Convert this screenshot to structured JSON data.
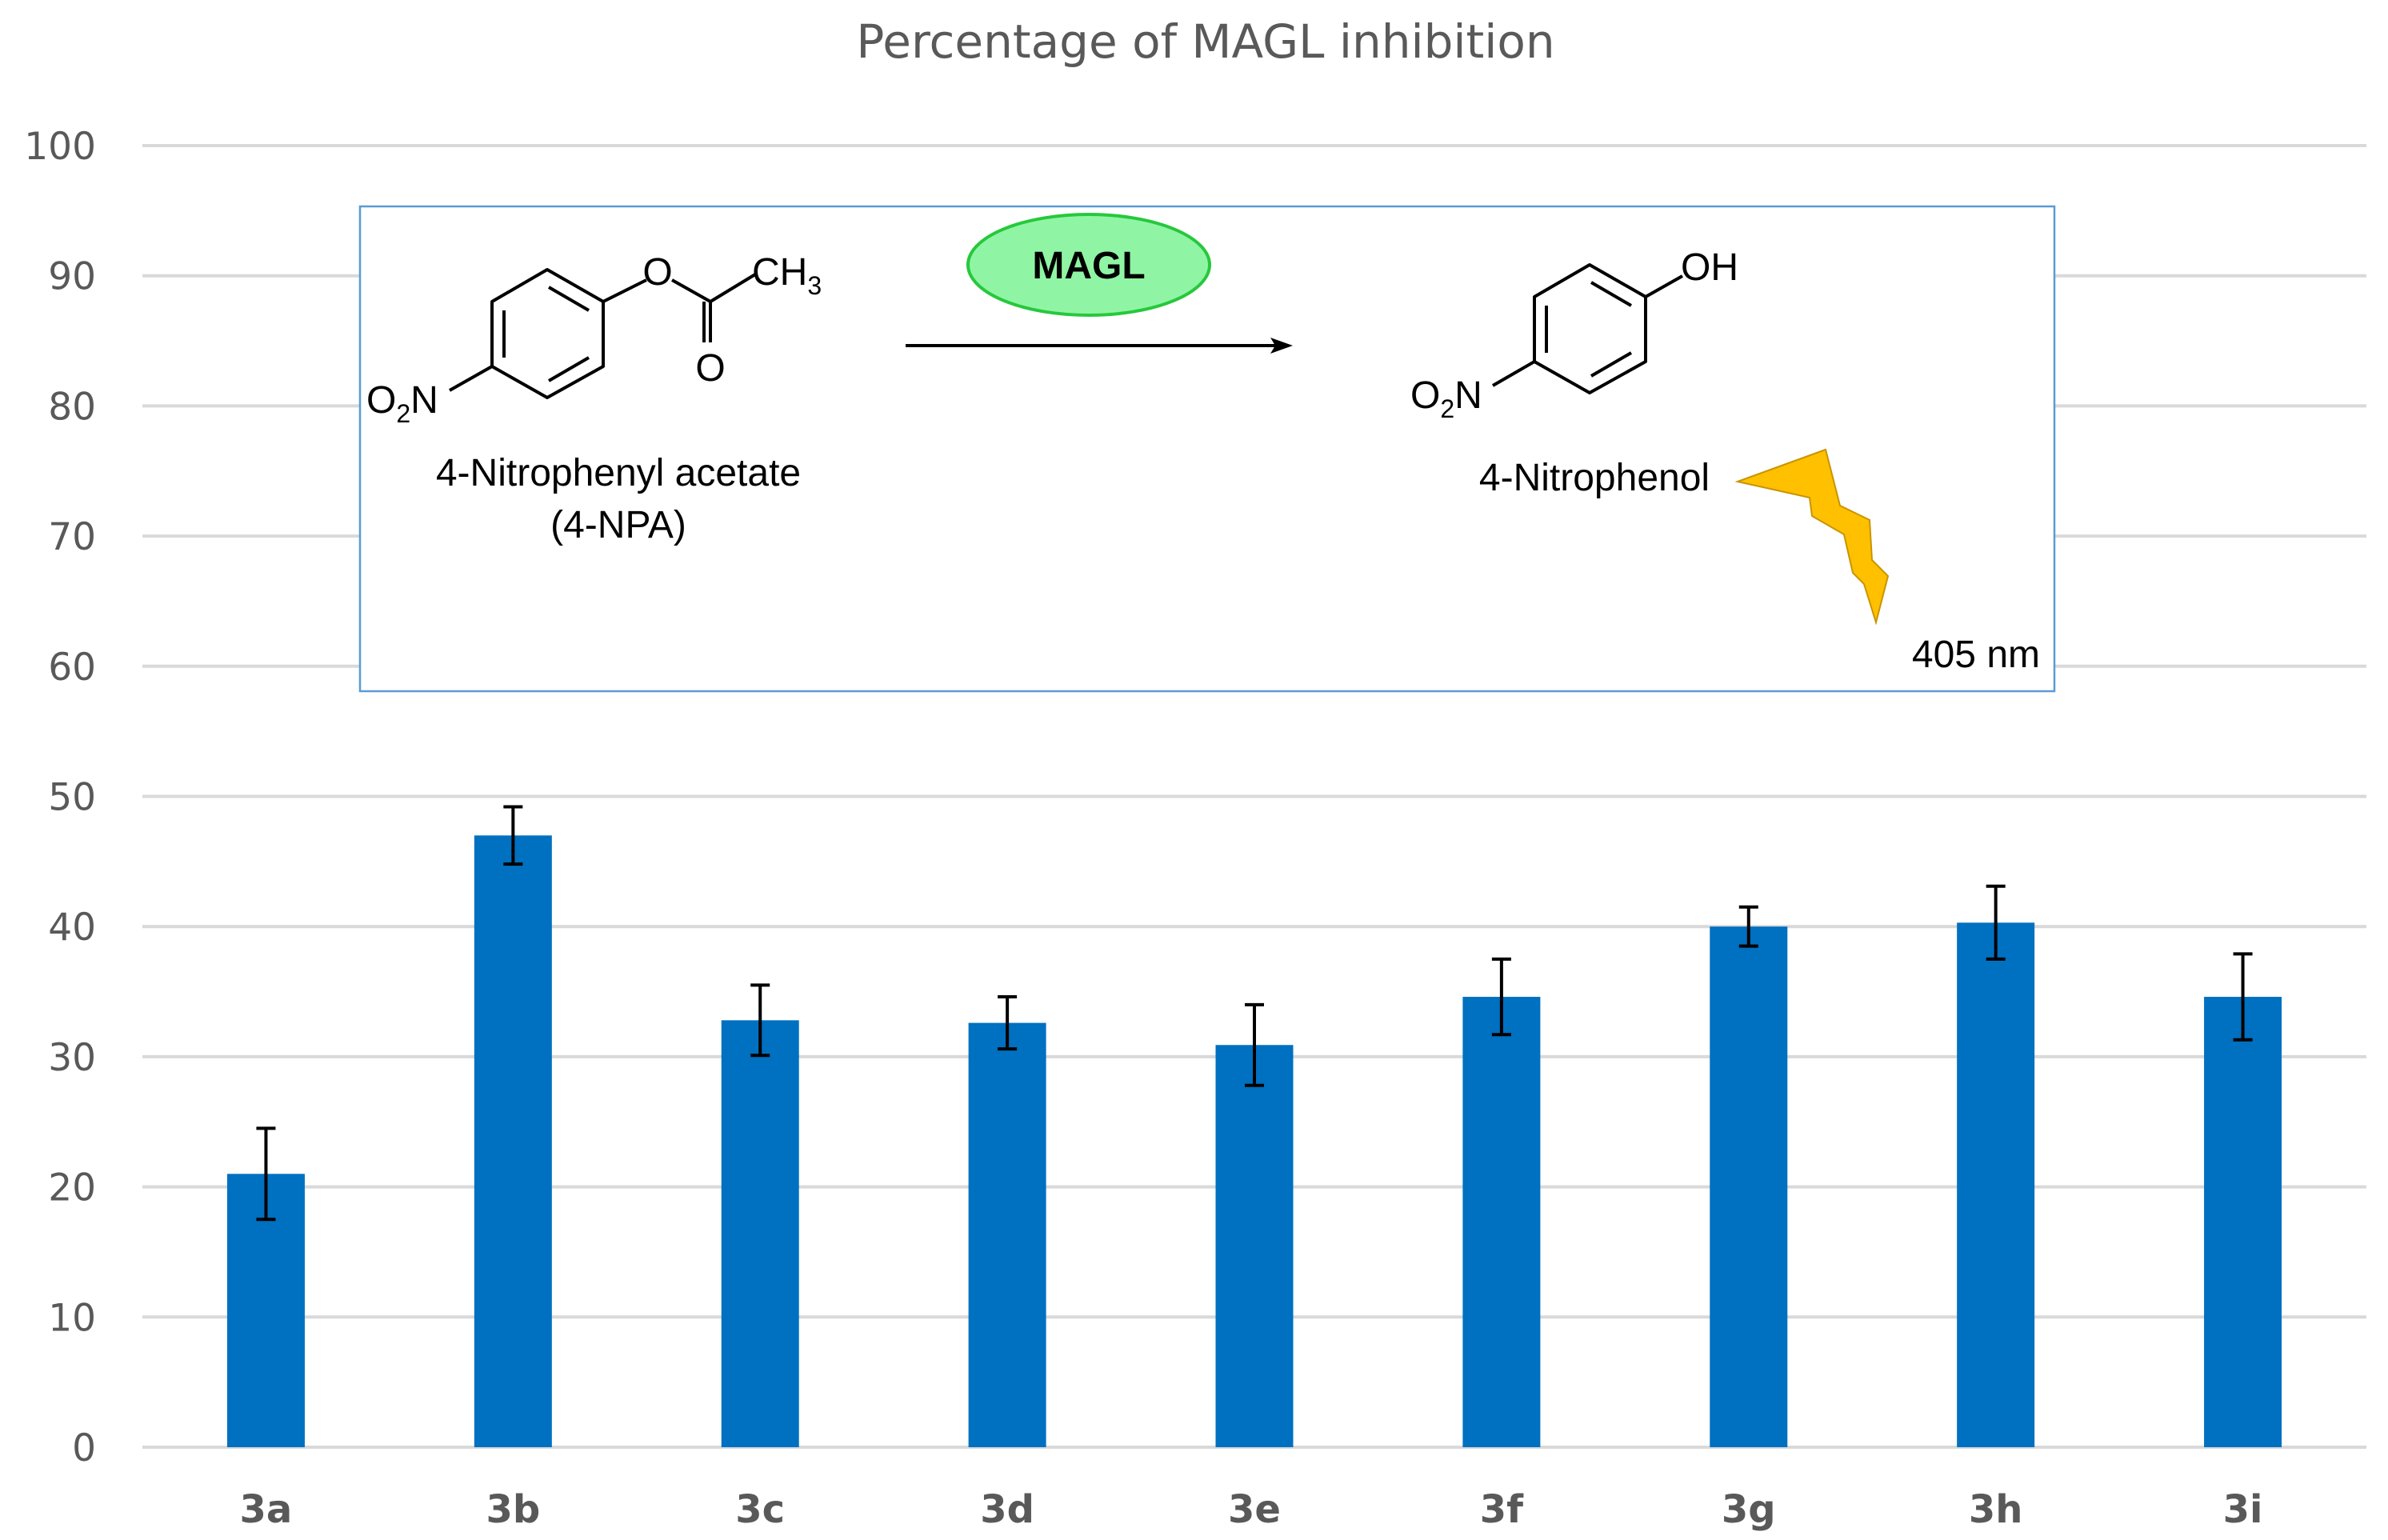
{
  "chart_data": {
    "type": "bar",
    "title": "Percentage of MAGL inhibition",
    "xlabel": "",
    "ylabel": "",
    "ylim": [
      0,
      100
    ],
    "yticks": [
      0,
      10,
      20,
      30,
      40,
      50,
      60,
      70,
      80,
      90,
      100
    ],
    "grid": true,
    "categories": [
      "3a",
      "3b",
      "3c",
      "3d",
      "3e",
      "3f",
      "3g",
      "3h",
      "3i"
    ],
    "values": [
      21.0,
      47.0,
      32.8,
      32.6,
      30.9,
      34.6,
      40.0,
      40.3,
      34.6
    ],
    "errors": [
      3.5,
      2.2,
      2.7,
      2.0,
      3.1,
      2.9,
      1.5,
      2.8,
      3.3
    ],
    "bar_color": "#0070c0"
  },
  "scheme": {
    "substrate_name": "4-Nitrophenyl acetate",
    "substrate_abbrev": "(4-NPA)",
    "substrate_ester_o": "O",
    "substrate_carbonyl_o": "O",
    "substrate_methyl": "CH",
    "substrate_methyl_sub": "3",
    "nitro_o": "O",
    "nitro_sub": "2",
    "nitro_n": "N",
    "enzyme": "MAGL",
    "product_name": "4-Nitrophenol",
    "product_oh": "OH",
    "wavelength": "405 nm",
    "border_color": "#5b9bd5",
    "enzyme_fill": "#8ff5a4",
    "enzyme_stroke": "#27c83c",
    "bolt_color": "#ffc000"
  }
}
